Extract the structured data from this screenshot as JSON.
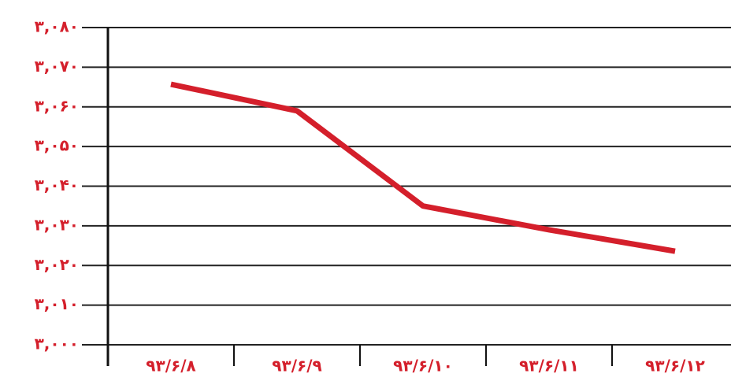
{
  "chart_data": {
    "type": "line",
    "categories": [
      "۹۳/۶/۸",
      "۹۳/۶/۹",
      "۹۳/۶/۱۰",
      "۹۳/۶/۱۱",
      "۹۳/۶/۱۲"
    ],
    "series": [
      {
        "name": null,
        "color": "#d41f2b",
        "values": [
          3065.7,
          3059,
          3035,
          3029,
          3023.6
        ]
      }
    ],
    "ylim": [
      3000,
      3080
    ],
    "yticks": [
      {
        "value": 3000,
        "label": "۳,۰۰۰"
      },
      {
        "value": 3010,
        "label": "۳,۰۱۰"
      },
      {
        "value": 3020,
        "label": "۳,۰۲۰"
      },
      {
        "value": 3030,
        "label": "۳,۰۳۰"
      },
      {
        "value": 3040,
        "label": "۳,۰۴۰"
      },
      {
        "value": 3050,
        "label": "۳,۰۵۰"
      },
      {
        "value": 3060,
        "label": "۳,۰۶۰"
      },
      {
        "value": 3070,
        "label": "۳,۰۷۰"
      },
      {
        "value": 3080,
        "label": "۳,۰۸۰"
      }
    ],
    "grid": true,
    "label_color": "#d41f2b"
  }
}
